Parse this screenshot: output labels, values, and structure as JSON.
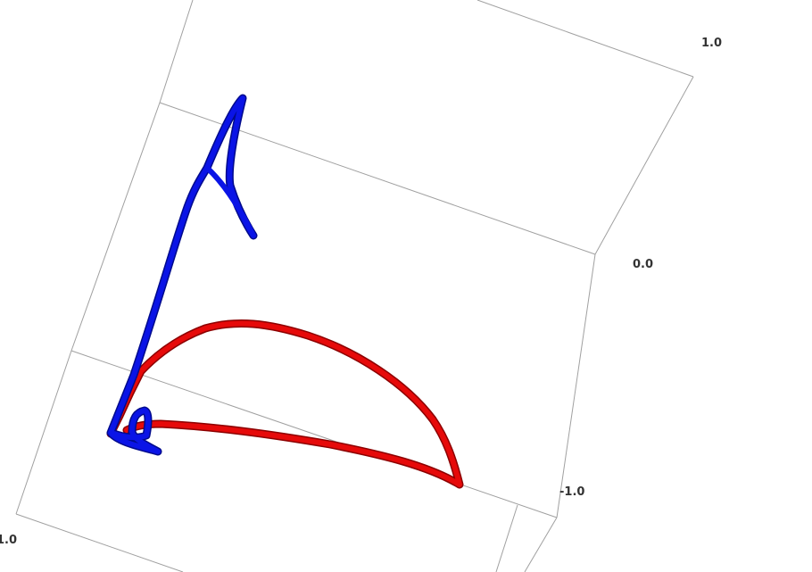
{
  "scene": {
    "colors": {
      "background": "#ffffff",
      "frame": "#a0a0a0",
      "blue_curve": "#0a14e6",
      "blue_curve_shade": "#000a8c",
      "red_curve": "#e60a0a",
      "red_curve_shade": "#8c0000"
    },
    "tick_labels": {
      "top_right": "1.0",
      "middle_right": "0.0",
      "bottom_right": "-1.0",
      "bottom_left": "1.0"
    }
  }
}
